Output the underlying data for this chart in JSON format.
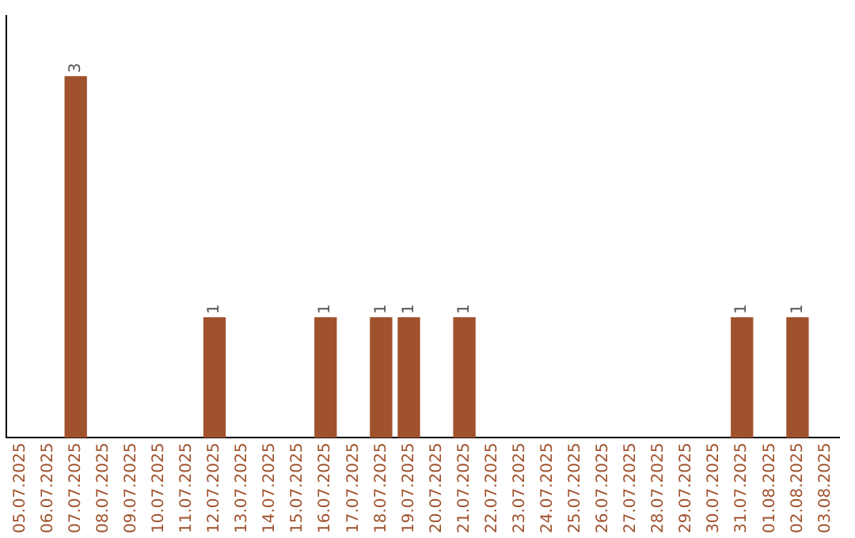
{
  "chart_data": {
    "type": "bar",
    "categories": [
      "05.07.2025",
      "06.07.2025",
      "07.07.2025",
      "08.07.2025",
      "09.07.2025",
      "10.07.2025",
      "11.07.2025",
      "12.07.2025",
      "13.07.2025",
      "14.07.2025",
      "15.07.2025",
      "16.07.2025",
      "17.07.2025",
      "18.07.2025",
      "19.07.2025",
      "20.07.2025",
      "21.07.2025",
      "22.07.2025",
      "23.07.2025",
      "24.07.2025",
      "25.07.2025",
      "26.07.2025",
      "27.07.2025",
      "28.07.2025",
      "29.07.2025",
      "30.07.2025",
      "31.07.2025",
      "01.08.2025",
      "02.08.2025",
      "03.08.2025"
    ],
    "values": [
      0,
      0,
      3,
      0,
      0,
      0,
      0,
      1,
      0,
      0,
      0,
      1,
      0,
      1,
      1,
      0,
      1,
      0,
      0,
      0,
      0,
      0,
      0,
      0,
      0,
      0,
      1,
      0,
      1,
      0
    ],
    "value_labels": [
      null,
      null,
      "3",
      null,
      null,
      null,
      null,
      "1",
      null,
      null,
      null,
      "1",
      null,
      "1",
      "1",
      null,
      "1",
      null,
      null,
      null,
      null,
      null,
      null,
      null,
      null,
      null,
      "1",
      null,
      "1",
      null
    ],
    "color": "#a0522d",
    "grid": false,
    "legend": false
  }
}
